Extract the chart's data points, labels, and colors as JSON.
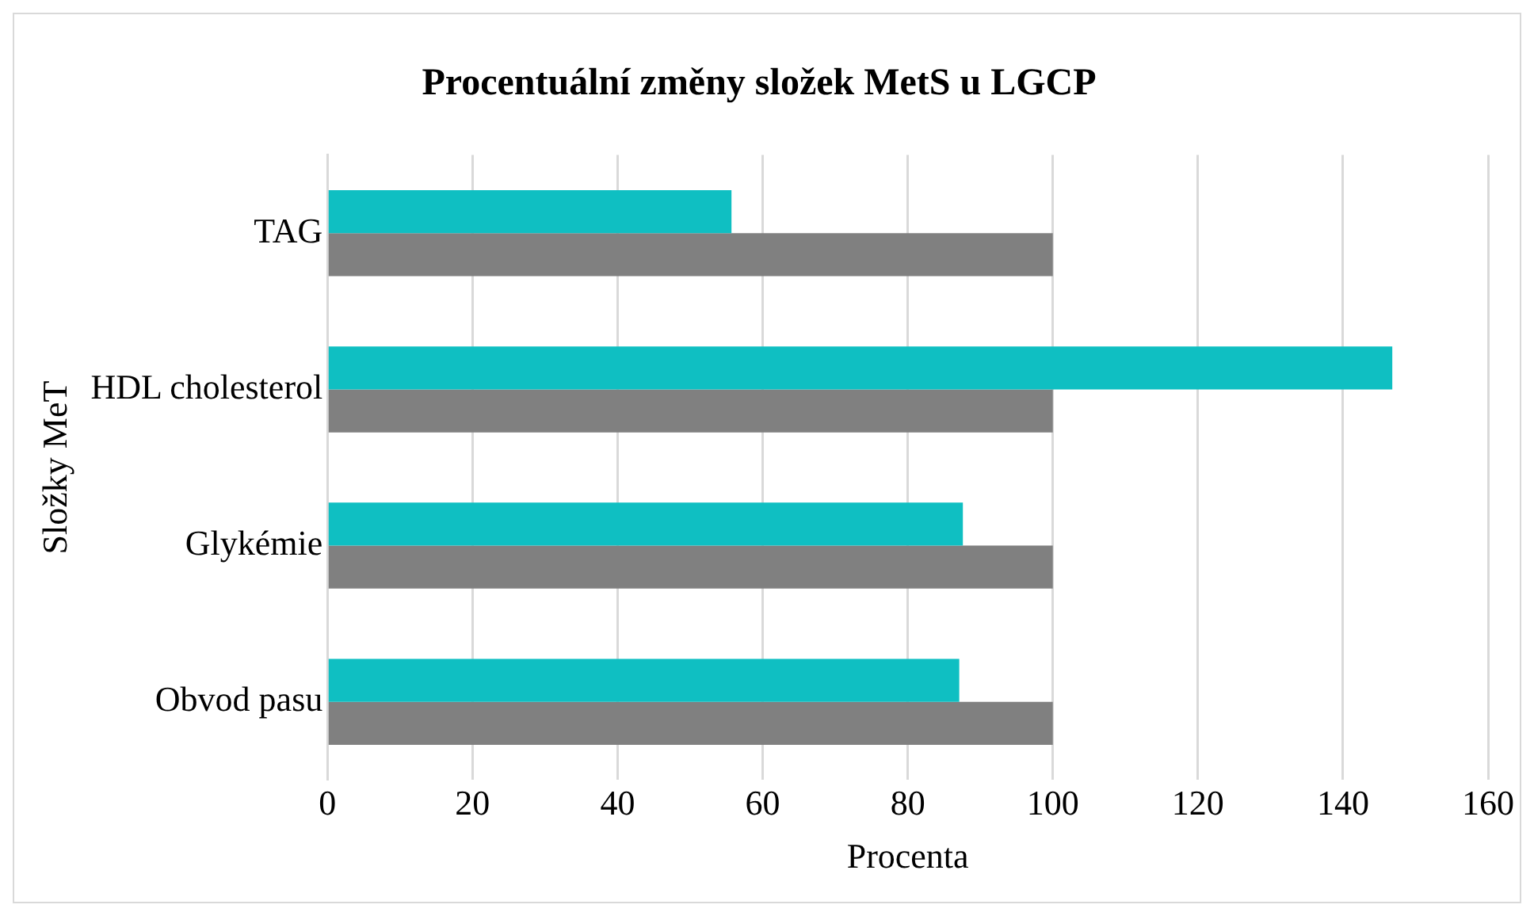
{
  "chart_data": {
    "type": "bar",
    "orientation": "horizontal",
    "title": "Procentuální změny složek MetS u LGCP",
    "xlabel": "Procenta",
    "ylabel": "Složky MeT",
    "categories": [
      "TAG",
      "HDL cholesterol",
      "Glykémie",
      "Obvod pasu"
    ],
    "series": [
      {
        "color": "#0fbfc2",
        "values": [
          55.7,
          146.8,
          87.6,
          87.1
        ]
      },
      {
        "color": "#808080",
        "values": [
          100,
          100,
          100,
          100
        ]
      }
    ],
    "xlim": [
      0,
      160
    ],
    "xticks": [
      0,
      20,
      40,
      60,
      80,
      100,
      120,
      140,
      160
    ],
    "grid": "x"
  }
}
